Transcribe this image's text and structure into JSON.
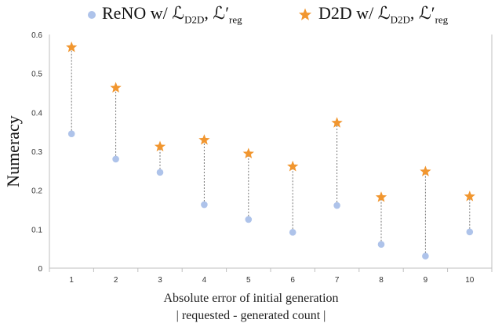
{
  "chart_data": {
    "type": "scatter",
    "title": "",
    "xlabel_line1": "Absolute error of initial generation",
    "xlabel_line2": "| requested - generated count |",
    "ylabel": "Numeracy",
    "ylim": [
      0,
      0.6
    ],
    "yticks": [
      "0",
      "0.1",
      "0.2",
      "0.3",
      "0.4",
      "0.5",
      "0.6"
    ],
    "categories": [
      "1",
      "2",
      "3",
      "4",
      "5",
      "6",
      "7",
      "8",
      "9",
      "10"
    ],
    "connectors": "dotted vertical lines between series at each category",
    "legend_position": "top",
    "series": [
      {
        "name": "ReNO w/ ℒD2D, ℒ′reg",
        "name_main": "ReNO w/ ℒ",
        "name_sub1": "D2D",
        "name_mid": ", ℒ′",
        "name_sub2": "reg",
        "marker": "circle",
        "color": "#aec3ea",
        "values": [
          0.345,
          0.28,
          0.246,
          0.163,
          0.125,
          0.092,
          0.161,
          0.061,
          0.031,
          0.093
        ]
      },
      {
        "name": "D2D w/ ℒD2D, ℒ′reg",
        "name_main": "D2D w/ ℒ",
        "name_sub1": "D2D",
        "name_mid": ", ℒ′",
        "name_sub2": "reg",
        "marker": "star",
        "color": "#f1962f",
        "values": [
          0.567,
          0.463,
          0.312,
          0.329,
          0.294,
          0.261,
          0.373,
          0.182,
          0.248,
          0.184
        ]
      }
    ]
  }
}
